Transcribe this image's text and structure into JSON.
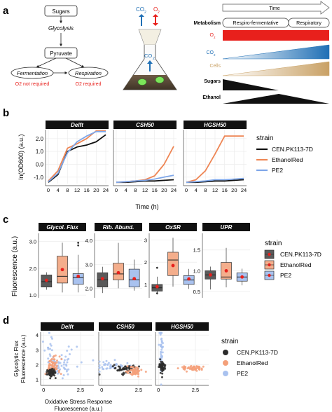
{
  "panel_labels": {
    "a": "a",
    "b": "b",
    "c": "c",
    "d": "d"
  },
  "panel_a": {
    "pathway": {
      "sugars": "Sugars",
      "glycolysis": "Glycolysis",
      "pyruvate": "Pyruvate",
      "fermentation": "Fermentation",
      "respiration": "Respiration",
      "o2_not_required": "O2 not required",
      "o2_required": "O2 required"
    },
    "flask": {
      "co2_left": "CO",
      "co2_sub": "2",
      "o2": "O",
      "o2_sub": "2",
      "co2_center": "CO",
      "co2_center_sub": "2"
    },
    "timeline": {
      "time_label": "Time",
      "metabolism_label": "Metabolism",
      "phase1": "Respiro-fermentative",
      "phase2": "Respiratory",
      "rows": [
        {
          "label": "O",
          "sub": "2",
          "color": "#e8201c"
        },
        {
          "label": "CO",
          "sub": "2",
          "color": "#1f6fb5"
        },
        {
          "label": "Cells",
          "sub": "",
          "color": "#c9a165"
        },
        {
          "label": "Sugars",
          "sub": "",
          "color": "#111111"
        },
        {
          "label": "Ethanol",
          "sub": "",
          "color": "#111111"
        }
      ]
    }
  },
  "chart_data": [
    {
      "type": "line",
      "panel": "b",
      "ylabel": "ln(OD600) (a.u.)",
      "xlabel": "Time (h)",
      "x": [
        0,
        4,
        8,
        12,
        16,
        20,
        24
      ],
      "ylim": [
        -1.5,
        2.7
      ],
      "yticks": [
        "-1.0",
        "0.0",
        "1.0",
        "2.0"
      ],
      "xticks": [
        "0",
        "4",
        "8",
        "12",
        "16",
        "20",
        "24"
      ],
      "legend_title": "strain",
      "legend": [
        "CEN.PK113-7D",
        "EthanolRed",
        "PE2"
      ],
      "colors": {
        "CEN.PK113-7D": "#111111",
        "EthanolRed": "#ee8655",
        "PE2": "#7ea6e8"
      },
      "facets": [
        {
          "title": "Delft",
          "series": [
            {
              "name": "CEN.PK113-7D",
              "values": [
                -1.4,
                -0.8,
                1.0,
                1.35,
                1.5,
                1.75,
                2.3
              ]
            },
            {
              "name": "EthanolRed",
              "values": [
                -1.3,
                -0.5,
                1.25,
                1.6,
                2.0,
                2.6,
                2.6
              ]
            },
            {
              "name": "PE2",
              "values": [
                -1.35,
                -0.7,
                0.9,
                1.75,
                2.2,
                2.55,
                2.55
              ]
            }
          ]
        },
        {
          "title": "CSH50",
          "series": [
            {
              "name": "CEN.PK113-7D",
              "values": [
                -1.4,
                -1.4,
                -1.35,
                -1.3,
                -1.3,
                -1.25,
                -1.2
              ]
            },
            {
              "name": "EthanolRed",
              "values": [
                -1.4,
                -1.35,
                -1.3,
                -1.2,
                -0.9,
                0.0,
                1.4
              ]
            },
            {
              "name": "PE2",
              "values": [
                -1.4,
                -1.35,
                -1.3,
                -1.25,
                -1.15,
                -1.0,
                -0.85
              ]
            }
          ]
        },
        {
          "title": "HGSH50",
          "series": [
            {
              "name": "CEN.PK113-7D",
              "values": [
                -1.4,
                -1.4,
                -1.35,
                -1.3,
                -1.3,
                -1.25,
                -1.2
              ]
            },
            {
              "name": "EthanolRed",
              "values": [
                -1.4,
                -1.2,
                -0.5,
                0.8,
                2.2,
                2.2,
                2.2
              ]
            },
            {
              "name": "PE2",
              "values": [
                -1.4,
                -1.35,
                -1.3,
                -1.2,
                -1.2,
                -1.15,
                -1.1
              ]
            }
          ]
        }
      ]
    },
    {
      "type": "box",
      "panel": "c",
      "ylabel": "Fluorescence (a.u.)",
      "legend_title": "strain",
      "legend": [
        "CEN.PK113-7D",
        "EthanolRed",
        "PE2"
      ],
      "colors": {
        "CEN.PK113-7D": "#5a5a5a",
        "EthanolRed": "#f4ae8c",
        "PE2": "#a9c2ef"
      },
      "mean_color": "#e8201c",
      "facets": [
        {
          "title": "Glycol. Flux",
          "ylim": [
            0.9,
            3.3
          ],
          "yticks": [
            1.0,
            2.0,
            3.0
          ],
          "yticklabels": [
            "1.0",
            "2.0",
            "3.0"
          ],
          "boxes": [
            {
              "strain": "CEN.PK113-7D",
              "min": 1.2,
              "q1": 1.3,
              "median": 1.5,
              "q3": 1.75,
              "max": 1.85,
              "mean": 1.55,
              "outliers": []
            },
            {
              "strain": "EthanolRed",
              "min": 1.1,
              "q1": 1.45,
              "median": 1.7,
              "q3": 2.45,
              "max": 2.95,
              "mean": 1.95,
              "outliers": []
            },
            {
              "strain": "PE2",
              "min": 1.1,
              "q1": 1.4,
              "median": 1.65,
              "q3": 1.8,
              "max": 2.5,
              "mean": 1.7,
              "outliers": [
                2.85,
                2.95
              ]
            }
          ]
        },
        {
          "title": "Rib. Abund.",
          "ylim": [
            1.6,
            4.3
          ],
          "yticks": [
            2.0,
            3.0,
            4.0
          ],
          "yticklabels": [
            "2.0",
            "3.0",
            "4.0"
          ],
          "boxes": [
            {
              "strain": "CEN.PK113-7D",
              "min": 1.8,
              "q1": 2.05,
              "median": 2.35,
              "q3": 2.65,
              "max": 2.9,
              "mean": 2.4,
              "outliers": []
            },
            {
              "strain": "EthanolRed",
              "min": 2.0,
              "q1": 2.35,
              "median": 2.6,
              "q3": 3.05,
              "max": 3.9,
              "mean": 2.65,
              "outliers": []
            },
            {
              "strain": "PE2",
              "min": 1.9,
              "q1": 2.05,
              "median": 2.35,
              "q3": 2.8,
              "max": 3.2,
              "mean": 2.4,
              "outliers": []
            }
          ]
        },
        {
          "title": "OxSR",
          "ylim": [
            0.4,
            3.3
          ],
          "yticks": [
            1.0,
            2.0,
            3.0
          ],
          "yticklabels": [
            "1",
            "2",
            "3"
          ],
          "boxes": [
            {
              "strain": "CEN.PK113-7D",
              "min": 0.55,
              "q1": 0.7,
              "median": 0.85,
              "q3": 1.0,
              "max": 1.35,
              "mean": 0.9,
              "outliers": [
                1.75,
                0.6
              ]
            },
            {
              "strain": "EthanolRed",
              "min": 0.9,
              "q1": 1.4,
              "median": 2.1,
              "q3": 2.45,
              "max": 3.1,
              "mean": 1.85,
              "outliers": []
            },
            {
              "strain": "PE2",
              "min": 0.8,
              "q1": 1.0,
              "median": 1.2,
              "q3": 1.4,
              "max": 1.7,
              "mean": 1.25,
              "outliers": []
            }
          ]
        },
        {
          "title": "UPR",
          "ylim": [
            0.35,
            1.9
          ],
          "yticks": [
            0.5,
            1.0,
            1.5
          ],
          "yticklabels": [
            "0.5",
            "1.0",
            "1.5"
          ],
          "boxes": [
            {
              "strain": "CEN.PK113-7D",
              "min": 0.55,
              "q1": 0.8,
              "median": 0.9,
              "q3": 1.0,
              "max": 1.1,
              "mean": 0.9,
              "outliers": []
            },
            {
              "strain": "EthanolRed",
              "min": 0.6,
              "q1": 0.8,
              "median": 0.85,
              "q3": 1.2,
              "max": 1.55,
              "mean": 1.0,
              "outliers": []
            },
            {
              "strain": "PE2",
              "min": 0.65,
              "q1": 0.75,
              "median": 0.85,
              "q3": 0.95,
              "max": 1.05,
              "mean": 0.85,
              "outliers": []
            }
          ]
        }
      ]
    },
    {
      "type": "scatter",
      "panel": "d",
      "xlabel": "Oxidative Stress Response Fluorescence (a.u.)",
      "xlabel_line1": "Oxidative Stress Response",
      "xlabel_line2": "Fluorescence (a.u.)",
      "ylabel_line1": "Glycolytic Flux",
      "ylabel_line2": "Fluorescence (a.u.)",
      "xlim": [
        -0.2,
        3.4
      ],
      "ylim": [
        0.6,
        4.2
      ],
      "xticks": [
        "0",
        "2.5"
      ],
      "yticks": [
        "1",
        "2",
        "3",
        "4"
      ],
      "legend_title": "strain",
      "legend": [
        "CEN.PK113-7D",
        "EthanolRed",
        "PE2"
      ],
      "colors": {
        "CEN.PK113-7D": "#2b2b2b",
        "EthanolRed": "#f4a07a",
        "PE2": "#a9c2ef"
      },
      "facets": [
        {
          "title": "Delft",
          "clusters": [
            {
              "strain": "PE2",
              "cx": 1.2,
              "cy": 2.1,
              "sx": 0.6,
              "sy": 0.5,
              "n": 55
            },
            {
              "strain": "PE2",
              "cx": 0.45,
              "cy": 3.0,
              "sx": 0.12,
              "sy": 0.5,
              "n": 15
            },
            {
              "strain": "EthanolRed",
              "cx": 0.6,
              "cy": 1.9,
              "sx": 0.25,
              "sy": 0.35,
              "n": 70
            },
            {
              "strain": "CEN.PK113-7D",
              "cx": 0.55,
              "cy": 1.45,
              "sx": 0.15,
              "sy": 0.15,
              "n": 55
            }
          ]
        },
        {
          "title": "CSH50",
          "clusters": [
            {
              "strain": "PE2",
              "cx": 0.7,
              "cy": 1.95,
              "sx": 0.7,
              "sy": 0.12,
              "n": 40
            },
            {
              "strain": "CEN.PK113-7D",
              "cx": 1.7,
              "cy": 1.7,
              "sx": 0.45,
              "sy": 0.15,
              "n": 55
            },
            {
              "strain": "EthanolRed",
              "cx": 2.2,
              "cy": 1.55,
              "sx": 0.25,
              "sy": 0.15,
              "n": 60
            }
          ]
        },
        {
          "title": "HGSH50",
          "clusters": [
            {
              "strain": "PE2",
              "cx": 0.2,
              "cy": 3.0,
              "sx": 0.07,
              "sy": 0.75,
              "n": 45
            },
            {
              "strain": "CEN.PK113-7D",
              "cx": 0.25,
              "cy": 1.85,
              "sx": 0.1,
              "sy": 0.22,
              "n": 55
            },
            {
              "strain": "EthanolRed",
              "cx": 2.3,
              "cy": 1.75,
              "sx": 0.4,
              "sy": 0.1,
              "n": 55
            }
          ]
        }
      ]
    }
  ]
}
